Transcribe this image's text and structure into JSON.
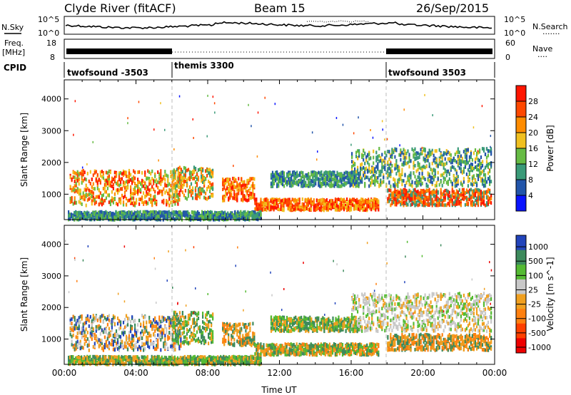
{
  "header": {
    "station": "Clyde River (fitACF)",
    "beam": "Beam 15",
    "date": "26/Sep/2015"
  },
  "panels": {
    "nsky": {
      "label": "N.Sky",
      "left_ticks": [
        "10^5",
        "10^0"
      ],
      "right_ticks": [
        "10^5",
        "10^0"
      ],
      "right_label": "N.Search",
      "right_label_dots": "......."
    },
    "freq": {
      "label_top": "Freq.",
      "label_bottom": "[MHz]",
      "left_ticks": [
        "18",
        "8"
      ],
      "right_ticks": [
        "60",
        "0"
      ],
      "right_label": "Nave",
      "right_label_dots": "...."
    },
    "cpid": {
      "label": "CPID",
      "segments": [
        {
          "name": "twofsound -3503",
          "start_h": 0
        },
        {
          "name": "themis 3300",
          "start_h": 6
        },
        {
          "name": "twofsound 3503",
          "start_h": 18
        }
      ]
    }
  },
  "chart_data": [
    {
      "type": "heatmap",
      "parameter": "power",
      "ylabel": "Slant Range [km]",
      "yticks": [
        1000,
        2000,
        3000,
        4000
      ],
      "ylim": [
        200,
        4600
      ],
      "xlim": [
        0,
        24
      ],
      "colorbar": {
        "label": "Power [dB]",
        "ticks": [
          4,
          8,
          12,
          16,
          20,
          24,
          28
        ],
        "range": [
          0,
          32
        ]
      },
      "colors": [
        "#0a14ff",
        "#2255aa",
        "#3a9a78",
        "#66bb44",
        "#f0c020",
        "#ff8c00",
        "#ff4800",
        "#ff1500"
      ]
    },
    {
      "type": "heatmap",
      "parameter": "velocity",
      "ylabel": "Slant Range [km]",
      "yticks": [
        1000,
        2000,
        3000,
        4000
      ],
      "ylim": [
        200,
        4600
      ],
      "xlim": [
        0,
        24
      ],
      "xlabel": "Time UT",
      "xticks": [
        "00:00",
        "04:00",
        "08:00",
        "12:00",
        "16:00",
        "20:00",
        "00:00"
      ],
      "colorbar": {
        "label": "Velocity [m s^-1]",
        "ticks": [
          "1000",
          "500",
          "100",
          "25",
          "-25",
          "-100",
          "-500",
          "-1000"
        ]
      },
      "colors": [
        "#2244bb",
        "#3d8a5c",
        "#55bb33",
        "#c8c8c8",
        "#f0a020",
        "#ff8010",
        "#ff4000",
        "#ee0000"
      ]
    }
  ]
}
